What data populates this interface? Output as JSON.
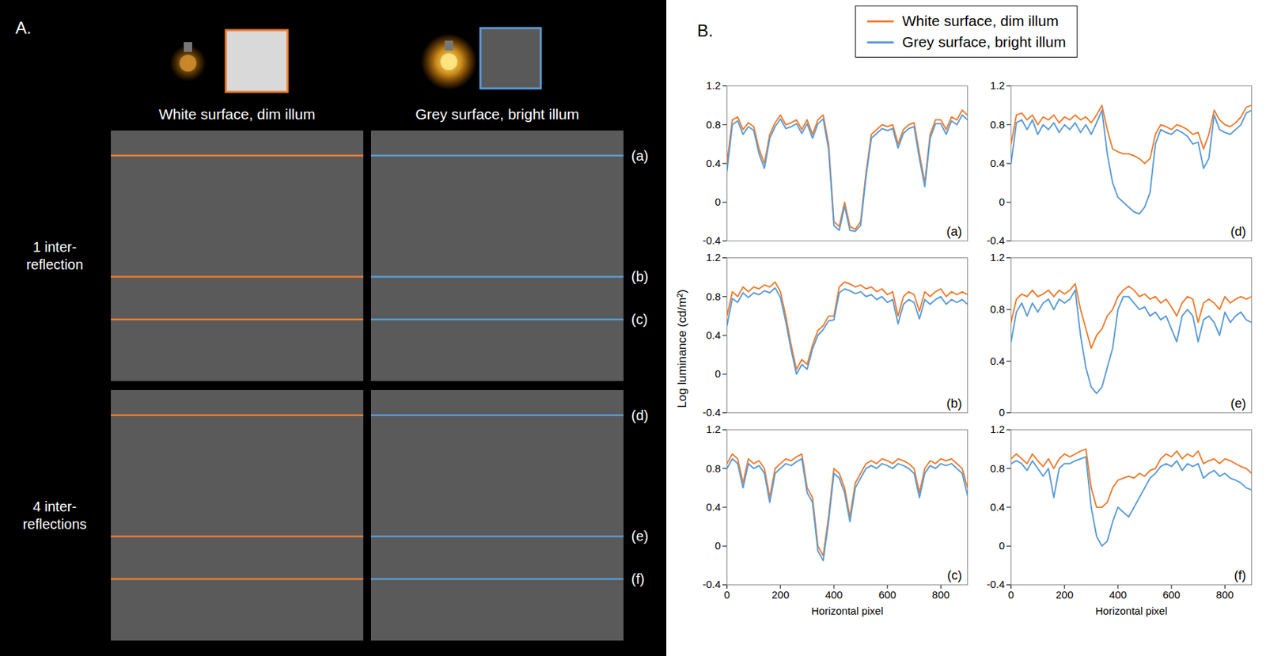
{
  "panel_a": {
    "label": "A.",
    "columns": [
      "White surface, dim illum",
      "Grey surface, bright illum"
    ],
    "rows": [
      "1 inter-reflection",
      "4 inter-reflections"
    ]
  },
  "panel_b": {
    "label": "B.",
    "y_label": "Log luminance (cd/m²)",
    "legend": "top"
  },
  "chart_data": [
    {
      "type": "line",
      "title": "(a)",
      "tick_labels": "y",
      "x": [
        0,
        20,
        40,
        60,
        80,
        100,
        120,
        140,
        160,
        180,
        200,
        220,
        240,
        260,
        280,
        300,
        320,
        340,
        360,
        380,
        400,
        420,
        440,
        460,
        480,
        500,
        520,
        540,
        560,
        580,
        600,
        620,
        640,
        660,
        680,
        700,
        720,
        740,
        760,
        780,
        800,
        820,
        840,
        860,
        880,
        900
      ],
      "xlim": [
        0,
        900
      ],
      "ylim": [
        -0.4,
        1.2
      ],
      "yticks": [
        -0.4,
        0,
        0.4,
        0.8,
        1.2
      ],
      "series": [
        {
          "name": "White surface, dim illum",
          "color": "#ED7D31",
          "values": [
            0.4,
            0.85,
            0.88,
            0.75,
            0.82,
            0.78,
            0.55,
            0.4,
            0.7,
            0.82,
            0.9,
            0.8,
            0.82,
            0.85,
            0.75,
            0.85,
            0.7,
            0.85,
            0.9,
            0.6,
            -0.2,
            -0.25,
            0.0,
            -0.25,
            -0.28,
            -0.2,
            0.3,
            0.7,
            0.75,
            0.8,
            0.78,
            0.8,
            0.6,
            0.75,
            0.8,
            0.82,
            0.5,
            0.2,
            0.7,
            0.85,
            0.85,
            0.75,
            0.88,
            0.85,
            0.95,
            0.9
          ]
        },
        {
          "name": "Grey surface, bright illum",
          "color": "#5B9BD5",
          "values": [
            0.32,
            0.8,
            0.84,
            0.7,
            0.78,
            0.74,
            0.5,
            0.35,
            0.66,
            0.78,
            0.86,
            0.76,
            0.78,
            0.81,
            0.71,
            0.81,
            0.66,
            0.81,
            0.86,
            0.55,
            -0.24,
            -0.29,
            -0.04,
            -0.29,
            -0.3,
            -0.24,
            0.26,
            0.66,
            0.71,
            0.76,
            0.74,
            0.76,
            0.56,
            0.71,
            0.76,
            0.78,
            0.45,
            0.16,
            0.66,
            0.81,
            0.81,
            0.7,
            0.84,
            0.8,
            0.9,
            0.85
          ]
        }
      ]
    },
    {
      "type": "line",
      "title": "(b)",
      "tick_labels": "y",
      "x": [
        0,
        20,
        40,
        60,
        80,
        100,
        120,
        140,
        160,
        180,
        200,
        220,
        240,
        260,
        280,
        300,
        320,
        340,
        360,
        380,
        400,
        420,
        440,
        460,
        480,
        500,
        520,
        540,
        560,
        580,
        600,
        620,
        640,
        660,
        680,
        700,
        720,
        740,
        760,
        780,
        800,
        820,
        840,
        860,
        880,
        900
      ],
      "xlim": [
        0,
        900
      ],
      "ylim": [
        -0.4,
        1.2
      ],
      "yticks": [
        -0.4,
        0,
        0.4,
        0.8,
        1.2
      ],
      "series": [
        {
          "name": "White surface, dim illum",
          "color": "#ED7D31",
          "values": [
            0.6,
            0.85,
            0.8,
            0.9,
            0.85,
            0.9,
            0.88,
            0.92,
            0.9,
            0.95,
            0.85,
            0.6,
            0.3,
            0.05,
            0.15,
            0.1,
            0.3,
            0.45,
            0.5,
            0.6,
            0.6,
            0.9,
            0.95,
            0.93,
            0.9,
            0.92,
            0.88,
            0.9,
            0.85,
            0.88,
            0.82,
            0.85,
            0.6,
            0.8,
            0.85,
            0.82,
            0.65,
            0.85,
            0.8,
            0.85,
            0.88,
            0.8,
            0.85,
            0.82,
            0.85,
            0.82
          ]
        },
        {
          "name": "Grey surface, bright illum",
          "color": "#5B9BD5",
          "values": [
            0.5,
            0.78,
            0.74,
            0.84,
            0.79,
            0.84,
            0.82,
            0.86,
            0.84,
            0.89,
            0.79,
            0.54,
            0.25,
            0.0,
            0.1,
            0.05,
            0.26,
            0.4,
            0.46,
            0.55,
            0.56,
            0.84,
            0.88,
            0.86,
            0.83,
            0.85,
            0.8,
            0.82,
            0.77,
            0.8,
            0.74,
            0.77,
            0.52,
            0.72,
            0.77,
            0.74,
            0.57,
            0.77,
            0.72,
            0.77,
            0.8,
            0.72,
            0.77,
            0.74,
            0.77,
            0.72
          ]
        }
      ]
    },
    {
      "type": "line",
      "title": "(c)",
      "x_label": "Horizontal pixel",
      "x": [
        0,
        20,
        40,
        60,
        80,
        100,
        120,
        140,
        160,
        180,
        200,
        220,
        240,
        260,
        280,
        300,
        320,
        340,
        360,
        380,
        400,
        420,
        440,
        460,
        480,
        500,
        520,
        540,
        560,
        580,
        600,
        620,
        640,
        660,
        680,
        700,
        720,
        740,
        760,
        780,
        800,
        820,
        840,
        860,
        880,
        900
      ],
      "xlim": [
        0,
        900
      ],
      "xticks": [
        0,
        200,
        400,
        600,
        800
      ],
      "ylim": [
        -0.4,
        1.2
      ],
      "yticks": [
        -0.4,
        0,
        0.4,
        0.8,
        1.2
      ],
      "series": [
        {
          "name": "White surface, dim illum",
          "color": "#ED7D31",
          "values": [
            0.85,
            0.95,
            0.9,
            0.65,
            0.9,
            0.85,
            0.88,
            0.8,
            0.5,
            0.8,
            0.85,
            0.9,
            0.88,
            0.92,
            0.95,
            0.6,
            0.5,
            0.0,
            -0.1,
            0.3,
            0.8,
            0.75,
            0.6,
            0.3,
            0.65,
            0.75,
            0.85,
            0.88,
            0.85,
            0.9,
            0.88,
            0.85,
            0.9,
            0.88,
            0.85,
            0.8,
            0.55,
            0.8,
            0.88,
            0.85,
            0.9,
            0.88,
            0.9,
            0.85,
            0.8,
            0.6
          ]
        },
        {
          "name": "Grey surface, bright illum",
          "color": "#5B9BD5",
          "values": [
            0.8,
            0.9,
            0.85,
            0.6,
            0.85,
            0.8,
            0.83,
            0.75,
            0.45,
            0.75,
            0.8,
            0.85,
            0.83,
            0.87,
            0.9,
            0.55,
            0.45,
            -0.05,
            -0.15,
            0.25,
            0.75,
            0.7,
            0.55,
            0.25,
            0.6,
            0.7,
            0.8,
            0.83,
            0.8,
            0.85,
            0.83,
            0.8,
            0.85,
            0.83,
            0.8,
            0.75,
            0.5,
            0.75,
            0.83,
            0.8,
            0.85,
            0.83,
            0.85,
            0.8,
            0.75,
            0.52
          ]
        }
      ]
    },
    {
      "type": "line",
      "title": "(d)",
      "tick_labels": "y",
      "x": [
        0,
        20,
        40,
        60,
        80,
        100,
        120,
        140,
        160,
        180,
        200,
        220,
        240,
        260,
        280,
        300,
        320,
        340,
        360,
        380,
        400,
        420,
        440,
        460,
        480,
        500,
        520,
        540,
        560,
        580,
        600,
        620,
        640,
        660,
        680,
        700,
        720,
        740,
        760,
        780,
        800,
        820,
        840,
        860,
        880,
        900
      ],
      "xlim": [
        0,
        900
      ],
      "ylim": [
        -0.4,
        1.2
      ],
      "yticks": [
        -0.4,
        0,
        0.4,
        0.8,
        1.2
      ],
      "series": [
        {
          "name": "White surface, dim illum",
          "color": "#ED7D31",
          "values": [
            0.6,
            0.9,
            0.92,
            0.85,
            0.9,
            0.8,
            0.88,
            0.85,
            0.9,
            0.82,
            0.88,
            0.85,
            0.9,
            0.85,
            0.88,
            0.82,
            0.9,
            1.0,
            0.75,
            0.55,
            0.52,
            0.5,
            0.5,
            0.48,
            0.45,
            0.4,
            0.45,
            0.7,
            0.8,
            0.78,
            0.75,
            0.8,
            0.78,
            0.75,
            0.7,
            0.72,
            0.55,
            0.7,
            0.95,
            0.85,
            0.8,
            0.78,
            0.82,
            0.88,
            0.98,
            1.0
          ]
        },
        {
          "name": "Grey surface, bright illum",
          "color": "#5B9BD5",
          "values": [
            0.4,
            0.82,
            0.85,
            0.75,
            0.85,
            0.7,
            0.8,
            0.75,
            0.82,
            0.72,
            0.8,
            0.75,
            0.82,
            0.72,
            0.8,
            0.7,
            0.82,
            0.95,
            0.5,
            0.2,
            0.05,
            0.0,
            -0.05,
            -0.1,
            -0.12,
            -0.05,
            0.1,
            0.6,
            0.75,
            0.72,
            0.7,
            0.75,
            0.72,
            0.68,
            0.6,
            0.62,
            0.35,
            0.45,
            0.9,
            0.75,
            0.72,
            0.7,
            0.75,
            0.8,
            0.92,
            0.95
          ]
        }
      ]
    },
    {
      "type": "line",
      "title": "(e)",
      "tick_labels": "y",
      "x": [
        0,
        20,
        40,
        60,
        80,
        100,
        120,
        140,
        160,
        180,
        200,
        220,
        240,
        260,
        280,
        300,
        320,
        340,
        360,
        380,
        400,
        420,
        440,
        460,
        480,
        500,
        520,
        540,
        560,
        580,
        600,
        620,
        640,
        660,
        680,
        700,
        720,
        740,
        760,
        780,
        800,
        820,
        840,
        860,
        880,
        900
      ],
      "xlim": [
        0,
        900
      ],
      "ylim": [
        0,
        1.2
      ],
      "yticks": [
        0,
        0.4,
        0.8,
        1.2
      ],
      "series": [
        {
          "name": "White surface, dim illum",
          "color": "#ED7D31",
          "values": [
            0.7,
            0.88,
            0.92,
            0.9,
            0.95,
            0.9,
            0.92,
            0.95,
            0.9,
            0.95,
            0.92,
            0.95,
            1.0,
            0.8,
            0.65,
            0.5,
            0.6,
            0.65,
            0.75,
            0.8,
            0.9,
            0.95,
            0.98,
            0.95,
            0.9,
            0.92,
            0.88,
            0.9,
            0.85,
            0.88,
            0.82,
            0.75,
            0.85,
            0.9,
            0.88,
            0.7,
            0.85,
            0.88,
            0.85,
            0.8,
            0.9,
            0.85,
            0.88,
            0.9,
            0.88,
            0.9
          ]
        },
        {
          "name": "Grey surface, bright illum",
          "color": "#5B9BD5",
          "values": [
            0.55,
            0.78,
            0.85,
            0.75,
            0.85,
            0.78,
            0.85,
            0.88,
            0.8,
            0.88,
            0.85,
            0.88,
            0.95,
            0.6,
            0.35,
            0.2,
            0.15,
            0.2,
            0.35,
            0.5,
            0.8,
            0.9,
            0.9,
            0.85,
            0.8,
            0.82,
            0.75,
            0.78,
            0.72,
            0.75,
            0.65,
            0.55,
            0.75,
            0.8,
            0.75,
            0.55,
            0.72,
            0.75,
            0.7,
            0.6,
            0.78,
            0.7,
            0.75,
            0.78,
            0.72,
            0.7
          ]
        }
      ]
    },
    {
      "type": "line",
      "title": "(f)",
      "x_label": "Horizontal pixel",
      "x": [
        0,
        20,
        40,
        60,
        80,
        100,
        120,
        140,
        160,
        180,
        200,
        220,
        240,
        260,
        280,
        300,
        320,
        340,
        360,
        380,
        400,
        420,
        440,
        460,
        480,
        500,
        520,
        540,
        560,
        580,
        600,
        620,
        640,
        660,
        680,
        700,
        720,
        740,
        760,
        780,
        800,
        820,
        840,
        860,
        880,
        900
      ],
      "xlim": [
        0,
        900
      ],
      "xticks": [
        0,
        200,
        400,
        600,
        800
      ],
      "ylim": [
        -0.4,
        1.2
      ],
      "yticks": [
        -0.4,
        0,
        0.4,
        0.8,
        1.2
      ],
      "series": [
        {
          "name": "White surface, dim illum",
          "color": "#ED7D31",
          "values": [
            0.9,
            0.95,
            0.9,
            0.85,
            0.95,
            0.88,
            0.82,
            0.9,
            0.8,
            0.9,
            0.95,
            0.92,
            0.95,
            0.98,
            1.0,
            0.6,
            0.4,
            0.4,
            0.45,
            0.6,
            0.68,
            0.7,
            0.72,
            0.7,
            0.75,
            0.72,
            0.78,
            0.8,
            0.9,
            0.95,
            0.92,
            0.98,
            0.9,
            0.95,
            0.92,
            0.98,
            0.85,
            0.88,
            0.9,
            0.85,
            0.9,
            0.88,
            0.85,
            0.82,
            0.8,
            0.75
          ]
        },
        {
          "name": "Grey surface, bright illum",
          "color": "#5B9BD5",
          "values": [
            0.85,
            0.88,
            0.85,
            0.78,
            0.88,
            0.8,
            0.72,
            0.8,
            0.5,
            0.8,
            0.85,
            0.85,
            0.88,
            0.9,
            0.92,
            0.4,
            0.1,
            0.0,
            0.05,
            0.25,
            0.4,
            0.35,
            0.3,
            0.4,
            0.5,
            0.6,
            0.7,
            0.75,
            0.82,
            0.85,
            0.82,
            0.88,
            0.78,
            0.85,
            0.82,
            0.85,
            0.7,
            0.75,
            0.78,
            0.72,
            0.75,
            0.7,
            0.68,
            0.65,
            0.6,
            0.58
          ]
        }
      ]
    }
  ]
}
